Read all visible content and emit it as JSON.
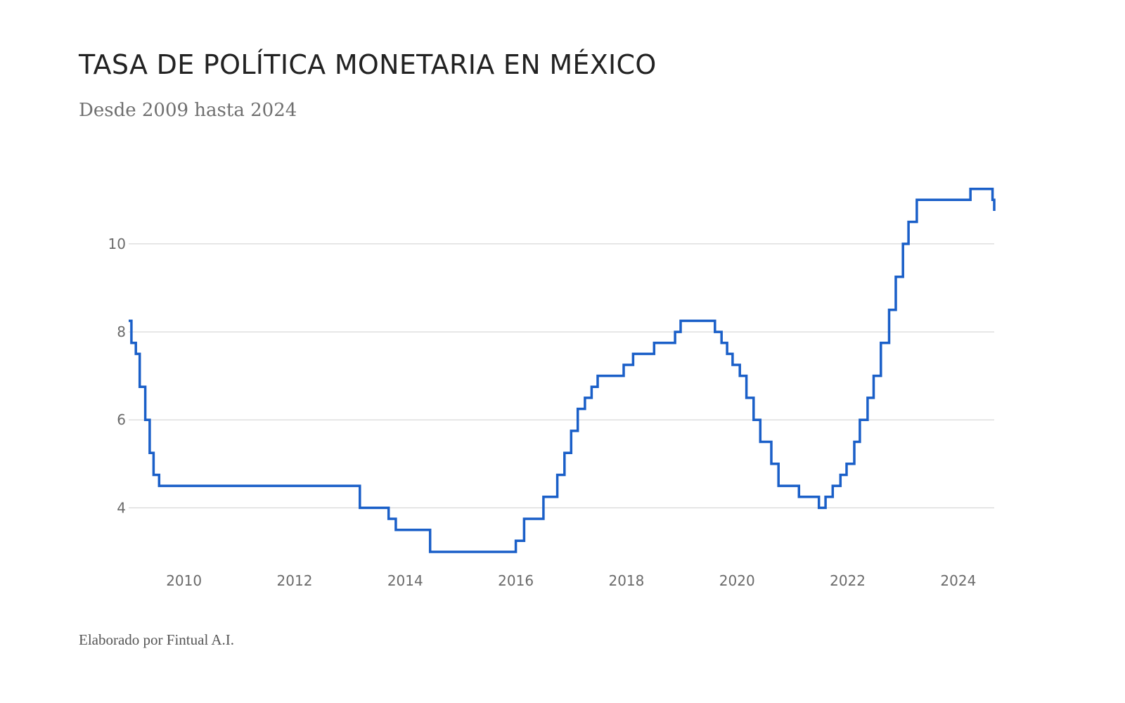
{
  "header": {
    "title": "TASA DE POLÍTICA MONETARIA EN MÉXICO",
    "subtitle": "Desde 2009 hasta 2024"
  },
  "footer": {
    "credit": "Elaborado por Fintual A.I."
  },
  "colors": {
    "line": "#1a5fc8",
    "grid": "#cfcfcf",
    "tick_text": "#6a6a6a"
  },
  "chart_data": {
    "type": "line",
    "step": true,
    "title": "TASA DE POLÍTICA MONETARIA EN MÉXICO",
    "subtitle": "Desde 2009 hasta 2024",
    "xlabel": "",
    "ylabel": "",
    "xlim": [
      2009.0,
      2024.65
    ],
    "ylim": [
      2.6,
      11.9
    ],
    "y_ticks": [
      4,
      6,
      8,
      10
    ],
    "x_ticks": [
      2010,
      2012,
      2014,
      2016,
      2018,
      2020,
      2022,
      2024
    ],
    "grid": true,
    "series": [
      {
        "name": "Tasa de política monetaria",
        "x": [
          2009.0,
          2009.05,
          2009.13,
          2009.2,
          2009.3,
          2009.38,
          2009.45,
          2009.55,
          2013.18,
          2013.7,
          2013.83,
          2014.45,
          2016.0,
          2016.15,
          2016.5,
          2016.75,
          2016.88,
          2017.0,
          2017.12,
          2017.25,
          2017.37,
          2017.48,
          2017.62,
          2017.95,
          2018.12,
          2018.5,
          2018.88,
          2018.98,
          2019.6,
          2019.72,
          2019.82,
          2019.92,
          2020.05,
          2020.17,
          2020.3,
          2020.42,
          2020.62,
          2020.75,
          2021.12,
          2021.48,
          2021.6,
          2021.73,
          2021.87,
          2021.98,
          2022.12,
          2022.22,
          2022.36,
          2022.47,
          2022.6,
          2022.75,
          2022.87,
          2023.0,
          2023.1,
          2023.25,
          2024.22,
          2024.62,
          2024.65
        ],
        "values": [
          8.25,
          7.75,
          7.5,
          6.75,
          6.0,
          5.25,
          4.75,
          4.5,
          4.0,
          3.75,
          3.5,
          3.0,
          3.25,
          3.75,
          4.25,
          4.75,
          5.25,
          5.75,
          6.25,
          6.5,
          6.75,
          7.0,
          7.0,
          7.25,
          7.5,
          7.75,
          8.0,
          8.25,
          8.0,
          7.75,
          7.5,
          7.25,
          7.0,
          6.5,
          6.0,
          5.5,
          5.0,
          4.5,
          4.25,
          4.0,
          4.25,
          4.5,
          4.75,
          5.0,
          5.5,
          6.0,
          6.5,
          7.0,
          7.75,
          8.5,
          9.25,
          10.0,
          10.5,
          11.0,
          11.25,
          11.0,
          10.75
        ]
      }
    ]
  }
}
